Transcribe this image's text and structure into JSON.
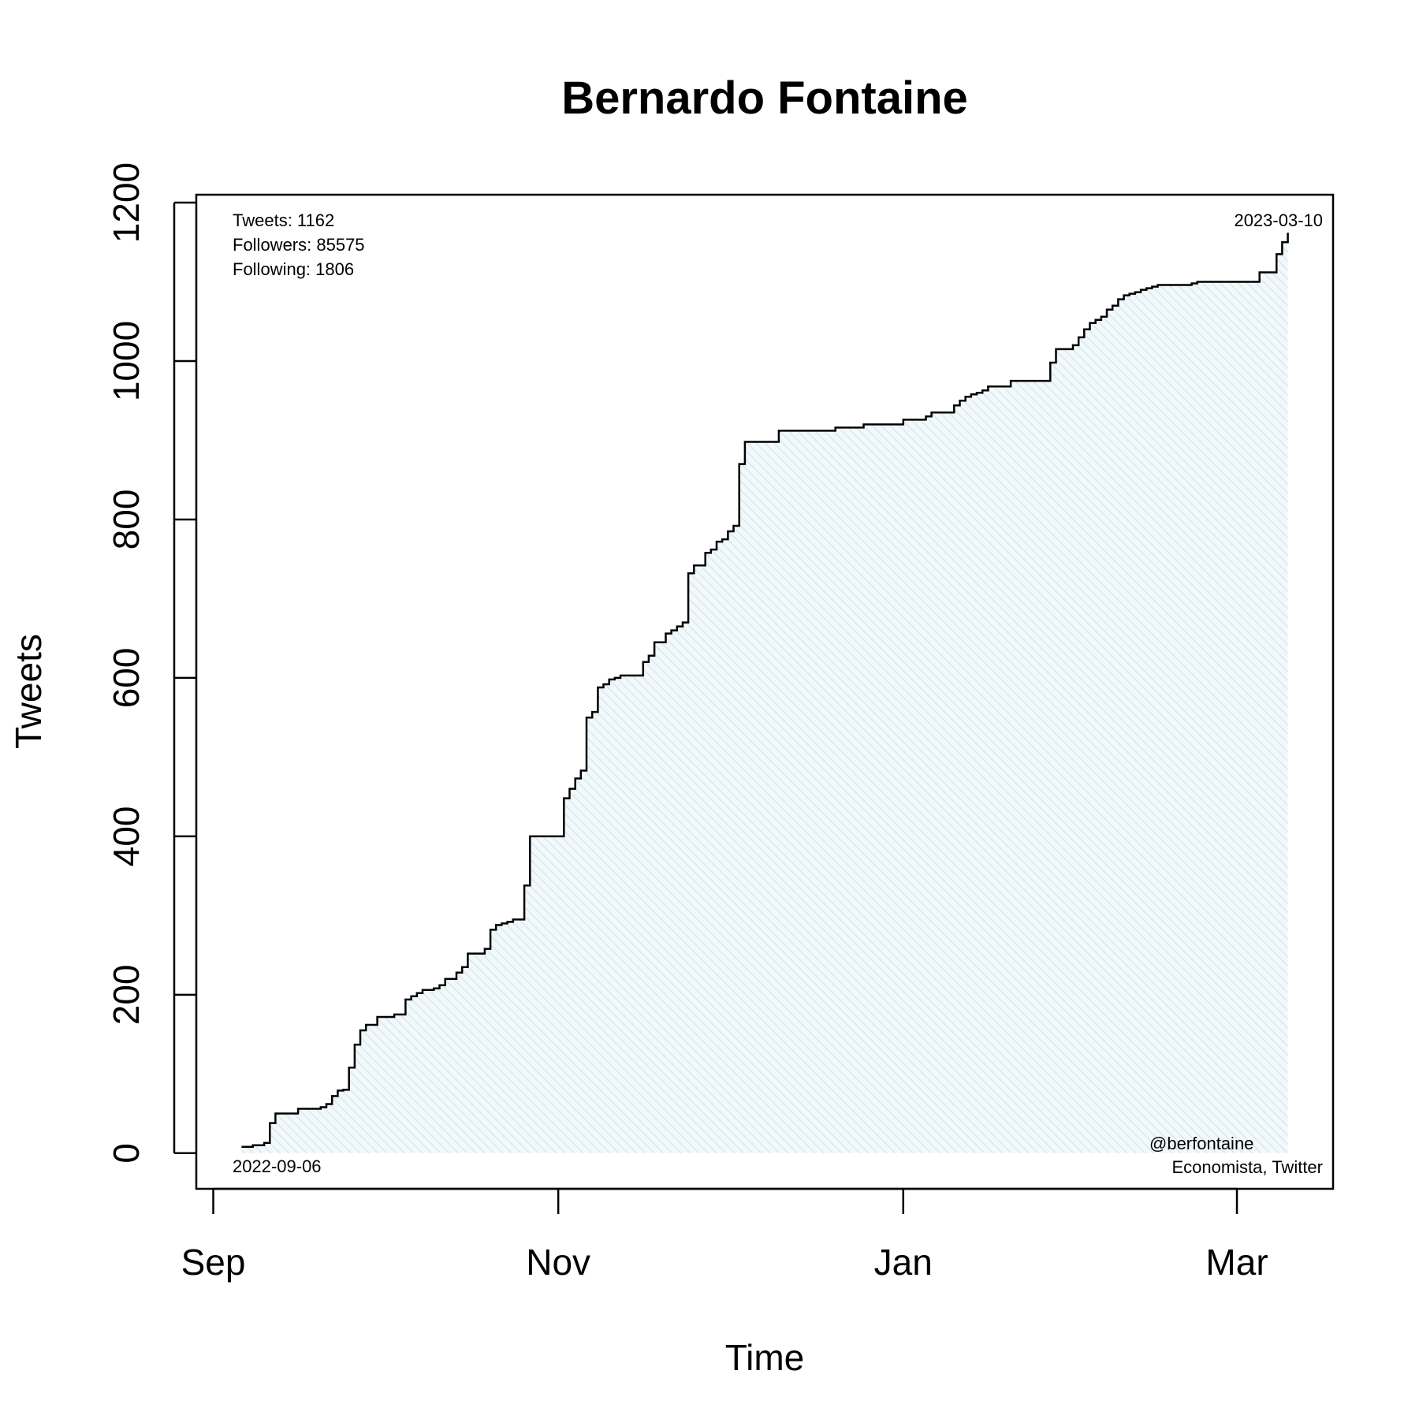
{
  "chart_data": {
    "type": "area",
    "title": "Bernardo Fontaine",
    "xlabel": "Time",
    "ylabel": "Tweets",
    "x_tick_labels": [
      "Sep",
      "Nov",
      "Jan",
      "Mar"
    ],
    "x_tick_dates": [
      "2022-09-01",
      "2022-11-01",
      "2023-01-01",
      "2023-03-01"
    ],
    "xlim": [
      "2022-08-29",
      "2023-03-18"
    ],
    "y_ticks": [
      0,
      200,
      400,
      600,
      800,
      1000,
      1200
    ],
    "ylim": [
      -45,
      1210
    ],
    "series": [
      {
        "name": "Tweets",
        "x": [
          "2022-09-06",
          "2022-09-08",
          "2022-09-10",
          "2022-09-11",
          "2022-09-12",
          "2022-09-16",
          "2022-09-20",
          "2022-09-21",
          "2022-09-22",
          "2022-09-23",
          "2022-09-24",
          "2022-09-25",
          "2022-09-26",
          "2022-09-27",
          "2022-09-28",
          "2022-09-30",
          "2022-10-03",
          "2022-10-05",
          "2022-10-06",
          "2022-10-07",
          "2022-10-08",
          "2022-10-10",
          "2022-10-11",
          "2022-10-12",
          "2022-10-14",
          "2022-10-15",
          "2022-10-16",
          "2022-10-19",
          "2022-10-20",
          "2022-10-21",
          "2022-10-22",
          "2022-10-23",
          "2022-10-24",
          "2022-10-26",
          "2022-10-27",
          "2022-11-02",
          "2022-11-03",
          "2022-11-04",
          "2022-11-05",
          "2022-11-06",
          "2022-11-07",
          "2022-11-08",
          "2022-11-09",
          "2022-11-10",
          "2022-11-11",
          "2022-11-12",
          "2022-11-16",
          "2022-11-17",
          "2022-11-18",
          "2022-11-20",
          "2022-11-21",
          "2022-11-22",
          "2022-11-23",
          "2022-11-24",
          "2022-11-25",
          "2022-11-27",
          "2022-11-28",
          "2022-11-29",
          "2022-11-30",
          "2022-12-01",
          "2022-12-02",
          "2022-12-03",
          "2022-12-04",
          "2022-12-10",
          "2022-12-20",
          "2022-12-25",
          "2023-01-01",
          "2023-01-05",
          "2023-01-06",
          "2023-01-10",
          "2023-01-11",
          "2023-01-12",
          "2023-01-13",
          "2023-01-14",
          "2023-01-15",
          "2023-01-16",
          "2023-01-20",
          "2023-01-27",
          "2023-01-28",
          "2023-01-31",
          "2023-02-01",
          "2023-02-02",
          "2023-02-03",
          "2023-02-04",
          "2023-02-05",
          "2023-02-06",
          "2023-02-07",
          "2023-02-08",
          "2023-02-09",
          "2023-02-10",
          "2023-02-11",
          "2023-02-12",
          "2023-02-13",
          "2023-02-14",
          "2023-02-15",
          "2023-02-21",
          "2023-02-22",
          "2023-03-05",
          "2023-03-08",
          "2023-03-09",
          "2023-03-10"
        ],
        "values": [
          8,
          10,
          13,
          38,
          50,
          56,
          58,
          62,
          72,
          79,
          80,
          108,
          137,
          155,
          162,
          172,
          175,
          194,
          198,
          202,
          206,
          208,
          212,
          220,
          228,
          235,
          252,
          258,
          282,
          288,
          290,
          292,
          295,
          338,
          400,
          448,
          460,
          473,
          483,
          550,
          557,
          588,
          592,
          598,
          600,
          603,
          620,
          628,
          645,
          656,
          660,
          665,
          670,
          732,
          742,
          758,
          762,
          772,
          775,
          785,
          792,
          870,
          898,
          912,
          916,
          920,
          926,
          930,
          935,
          944,
          950,
          955,
          958,
          960,
          963,
          968,
          975,
          998,
          1015,
          1020,
          1030,
          1040,
          1048,
          1052,
          1056,
          1065,
          1070,
          1078,
          1083,
          1085,
          1087,
          1090,
          1092,
          1094,
          1096,
          1098,
          1100,
          1112,
          1135,
          1150,
          1162
        ]
      }
    ],
    "annotations": {
      "stats": [
        "Tweets: 1162",
        "Followers: 85575",
        "Following: 1806"
      ],
      "start_date": "2022-09-06",
      "end_date": "2023-03-10",
      "handle": "@berfontaine",
      "description": "Economista, Twitter"
    },
    "fill_color": "#ddeef2",
    "line_color": "#000000"
  }
}
